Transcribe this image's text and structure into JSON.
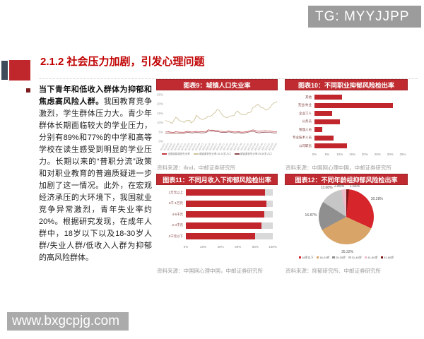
{
  "watermarks": {
    "tg": "TG: MYYJJPP",
    "site": "www.bxgcpjg.com"
  },
  "page": {
    "section_title": "2.1.2 社会压力加剧，引发心理问题"
  },
  "body": {
    "lead_bold": "当下青年和低收入群体为抑郁和焦虑高风险人群。",
    "text": "我国教育竞争激烈，学生群体压力大。青少年群体长期面临较大的学业压力，分别有89%和77%的中学和高等学校在读生感受到明显的学业压力。长期以来的“普职分流”政策和对职业教育的普遍质疑进一步加剧了这一情况。此外，在宏观经济承压的大环境下，我国就业竞争异常激烈，青年失业率约20%。根据研究发现，在成年人群中，18岁以下以及18-30岁人群/失业人群/低收入人群为抑郁的高风险群体。"
  },
  "colors": {
    "accent_red": "#c00000",
    "chart_header_bg": "#bf2b30",
    "bar_red": "#c0262c",
    "watermark_gray": "#9c9c9c"
  },
  "chart_data": [
    {
      "id": "chart9",
      "type": "line",
      "title": "图表9：城镇人口失业率",
      "source": "资料来源：ifind，中邮证券研究所",
      "ylim": [
        0,
        25
      ],
      "yticks": [
        "25%",
        "20%",
        "15%",
        "10%",
        "5%",
        "0%"
      ],
      "x_labels": [
        "2018-01",
        "2018-03",
        "2018-05",
        "2018-07",
        "2018-09",
        "2018-11",
        "2019-01",
        "2019-03",
        "2019-05",
        "2019-07",
        "2019-09",
        "2019-11",
        "2020-01",
        "2020-03",
        "2020-05",
        "2020-07",
        "2020-09",
        "2020-11",
        "2021-01",
        "2021-03",
        "2021-05",
        "2021-07",
        "2021-09",
        "2021-11",
        "2022-01",
        "2022-03",
        "2022-05",
        "2022-07",
        "2022-09",
        "2022-11",
        "2023-01",
        "2023-03",
        "2023-05"
      ],
      "series": [
        {
          "name": "全国城镇调查失业率",
          "color": "#c03b40",
          "values": [
            5.0,
            5.0,
            5.1,
            4.9,
            4.8,
            4.8,
            5.1,
            5.0,
            4.9,
            4.9,
            4.8,
            4.9,
            5.1,
            5.3,
            5.2,
            5.0,
            5.0,
            5.1,
            5.3,
            5.2,
            5.2,
            5.1,
            5.1,
            5.2,
            5.3,
            6.2,
            5.9,
            6.0,
            5.9,
            5.7,
            5.7,
            5.6,
            5.4,
            5.3,
            5.2,
            5.2,
            5.4,
            5.5,
            5.3,
            5.1,
            5.0,
            5.0,
            5.1,
            5.1,
            4.9,
            4.9,
            5.0,
            5.1,
            5.3,
            5.5,
            5.8,
            6.1,
            5.9,
            5.5,
            5.4,
            5.3,
            5.5,
            5.5,
            5.7,
            5.5,
            5.5,
            5.6,
            5.3,
            5.2,
            5.2,
            5.2
          ]
        },
        {
          "name": "城镇调查失业率:16-24岁人口",
          "color": "#cfc49c",
          "values": [
            11.2,
            10.8,
            10.4,
            10.1,
            9.6,
            11.2,
            12.8,
            12.4,
            11.2,
            10.8,
            10.5,
            10.1,
            11.1,
            11.0,
            11.3,
            9.8,
            10.5,
            11.5,
            13.9,
            13.1,
            12.3,
            11.8,
            11.7,
            12.2,
            12.6,
            13.6,
            13.3,
            13.8,
            14.8,
            15.4,
            16.8,
            16.8,
            15.7,
            14.2,
            13.5,
            12.8,
            12.7,
            13.1,
            13.6,
            13.6,
            13.8,
            15.4,
            16.2,
            15.3,
            14.6,
            14.2,
            14.3,
            14.3,
            15.3,
            15.3,
            16.0,
            18.2,
            18.4,
            19.3,
            19.9,
            18.7,
            17.9,
            17.9,
            17.1,
            16.7,
            17.3,
            18.1,
            19.6,
            20.4,
            20.8,
            21.3
          ]
        },
        {
          "name": "城镇调查失业率:25-59岁人口",
          "color": "#8a4a50",
          "values": [
            4.4,
            4.4,
            4.5,
            4.4,
            4.3,
            4.3,
            4.5,
            4.4,
            4.3,
            4.3,
            4.3,
            4.4,
            4.6,
            4.8,
            4.7,
            4.5,
            4.5,
            4.6,
            4.7,
            4.6,
            4.6,
            4.5,
            4.5,
            4.6,
            4.8,
            5.6,
            5.4,
            5.5,
            5.4,
            5.2,
            5.2,
            5.1,
            4.8,
            4.7,
            4.7,
            4.7,
            4.9,
            5.0,
            4.8,
            4.6,
            4.5,
            4.5,
            4.6,
            4.6,
            4.4,
            4.4,
            4.5,
            4.6,
            4.8,
            5.0,
            5.2,
            5.3,
            5.1,
            4.7,
            4.6,
            4.5,
            4.7,
            4.7,
            4.9,
            4.8,
            4.8,
            4.9,
            4.6,
            4.5,
            4.5,
            4.5
          ]
        }
      ]
    },
    {
      "id": "chart10",
      "type": "bar",
      "title": "图表10：不同职业抑郁风险检出率",
      "source": "资料来源：中国网心理中国，中邮证券研究所",
      "categories": [
        "其他",
        "无业/失业",
        "企业工人",
        "公务员",
        "管理人员",
        "专业技术人员",
        "公司职员"
      ],
      "values": [
        11,
        31,
        7,
        10,
        3,
        7.5,
        13
      ],
      "xlim": [
        0,
        35
      ],
      "xticks": [
        "0%",
        "5%",
        "10%",
        "15%",
        "20%",
        "25%",
        "30%",
        "35%"
      ]
    },
    {
      "id": "chart11",
      "type": "bar",
      "title": "图表11：不同月收入下抑郁风险检出率",
      "source": "资料来源：中国网心理中国，中邮证券研究所",
      "categories": [
        "1万元以上",
        "6千-1万元",
        "4-6千元",
        "2-4千元",
        "2千元以下"
      ],
      "values": [
        91,
        93,
        90,
        87,
        80
      ],
      "xlim": [
        0,
        100
      ],
      "xticks": [
        "0%",
        "20%",
        "40%",
        "60%",
        "80%",
        "100%"
      ]
    },
    {
      "id": "chart12",
      "type": "pie",
      "title": "图表12：不同年龄组抑郁风险检出率",
      "source": "资料来源：抑郁研究所、中邮证券研究所",
      "start_angle": 5.6,
      "slices": [
        {
          "label": "18岁以下",
          "value": 30.28,
          "color": "#d6252b"
        },
        {
          "label": "18-24岁",
          "value": 35.32,
          "color": "#d8a468"
        },
        {
          "label": "25-30岁",
          "value": 16.87,
          "color": "#8f8f8f"
        },
        {
          "label": "31-40岁",
          "value": 13.08,
          "color": "#c6c6c6"
        },
        {
          "label": "41-50岁",
          "value": 2.89,
          "color": "#f0b9c8"
        },
        {
          "label": "51-60岁",
          "value": 1.56,
          "color": "#7e1518"
        }
      ]
    }
  ]
}
